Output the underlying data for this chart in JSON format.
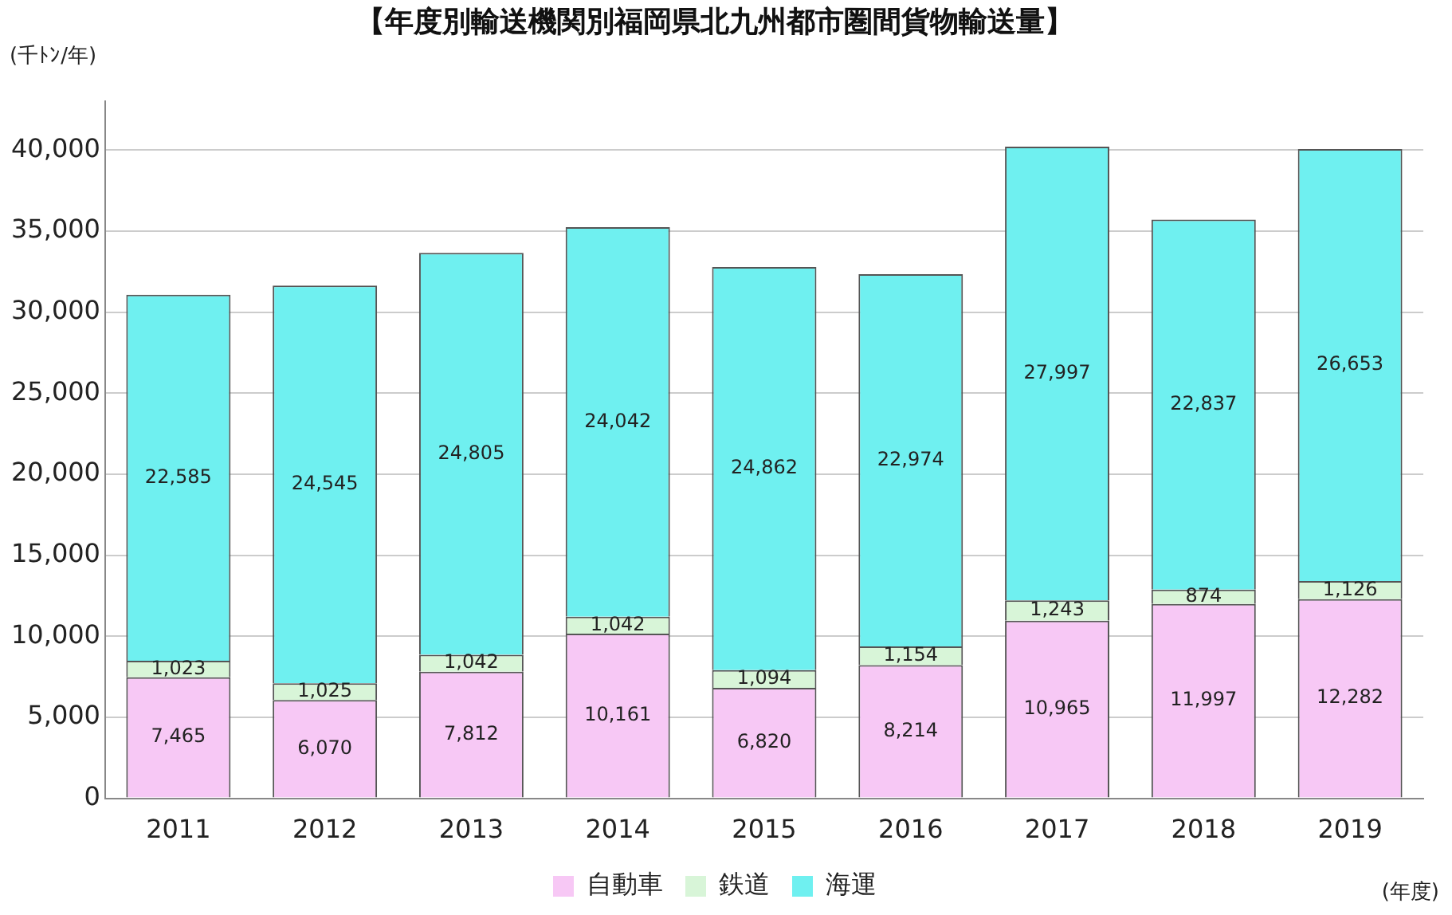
{
  "chart_data": {
    "type": "bar",
    "stacked": true,
    "title": "【年度別輸送機関別福岡県北九州都市圏間貨物輸送量】",
    "ylabel": "(千ﾄﾝ/年)",
    "xlabel": "(年度)",
    "categories": [
      "2011",
      "2012",
      "2013",
      "2014",
      "2015",
      "2016",
      "2017",
      "2018",
      "2019"
    ],
    "series": [
      {
        "name": "自動車",
        "color": "#f7c8f5",
        "values": [
          7465,
          6070,
          7812,
          10161,
          6820,
          8214,
          10965,
          11997,
          12282
        ],
        "value_labels": [
          "7,465",
          "6,070",
          "7,812",
          "10,161",
          "6,820",
          "8,214",
          "10,965",
          "11,997",
          "12,282"
        ]
      },
      {
        "name": "鉄道",
        "color": "#d8f5d8",
        "values": [
          1023,
          1025,
          1042,
          1042,
          1094,
          1154,
          1243,
          874,
          1126
        ],
        "value_labels": [
          "1,023",
          "1,025",
          "1,042",
          "1,042",
          "1,094",
          "1,154",
          "1,243",
          "874",
          "1,126"
        ]
      },
      {
        "name": "海運",
        "color": "#6ff0f0",
        "values": [
          22585,
          24545,
          24805,
          24042,
          24862,
          22974,
          27997,
          22837,
          26653
        ],
        "value_labels": [
          "22,585",
          "24,545",
          "24,805",
          "24,042",
          "24,862",
          "22,974",
          "27,997",
          "22,837",
          "26,653"
        ]
      }
    ],
    "ylim": [
      0,
      43000
    ],
    "yticks": [
      0,
      {
        "value": 5000,
        "label": "5,000"
      },
      {
        "value": 10000,
        "label": "10,000"
      },
      {
        "value": 15000,
        "label": "15,000"
      },
      {
        "value": 20000,
        "label": "20,000"
      },
      {
        "value": 25000,
        "label": "25,000"
      },
      {
        "value": 30000,
        "label": "30,000"
      },
      {
        "value": 35000,
        "label": "35,000"
      },
      {
        "value": 40000,
        "label": "40,000"
      }
    ],
    "grid": "y",
    "legend": "bottom"
  }
}
